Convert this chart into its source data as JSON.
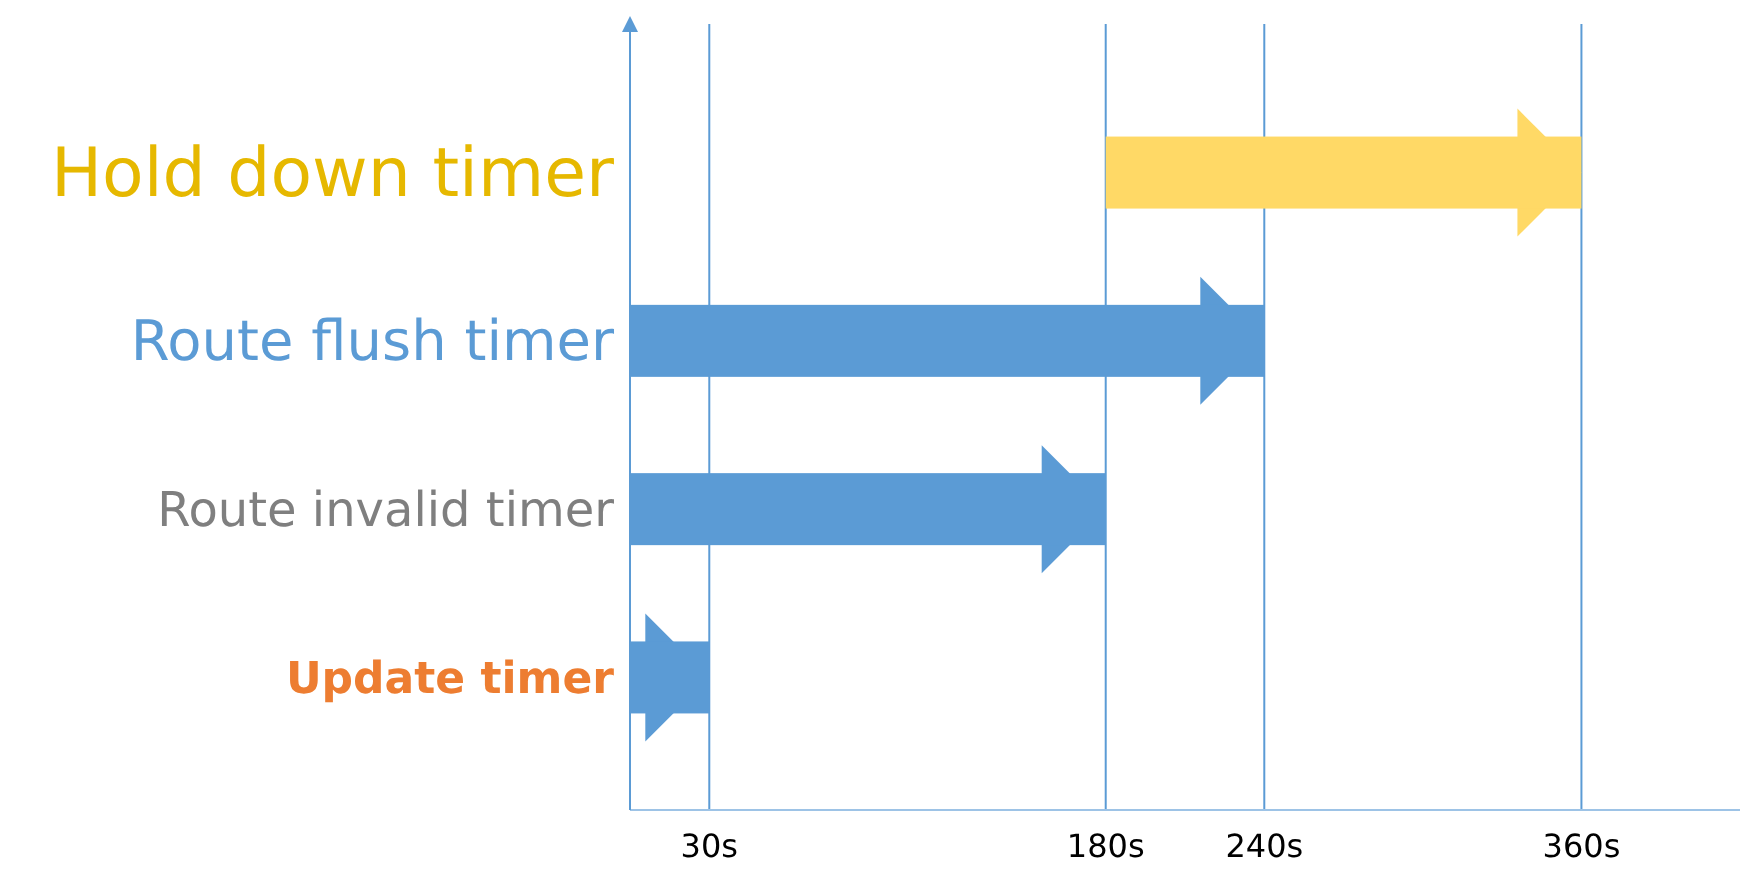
{
  "chart_data": {
    "type": "bar",
    "orientation": "horizontal",
    "categories": [
      "Hold down timer",
      "Route flush timer",
      "Route invalid timer",
      "Update timer"
    ],
    "values": [
      180,
      240,
      180,
      30
    ],
    "base": [
      180,
      0,
      0,
      0
    ],
    "colors": [
      "#ffd966",
      "#5b9bd5",
      "#5b9bd5",
      "#5b9bd5"
    ],
    "xlim": [
      0,
      420
    ],
    "xticks": [
      {
        "value": 30,
        "label": "30s"
      },
      {
        "value": 180,
        "label": "180s"
      },
      {
        "value": 240,
        "label": "240s"
      },
      {
        "value": 360,
        "label": "360s"
      }
    ],
    "grid": "x"
  }
}
